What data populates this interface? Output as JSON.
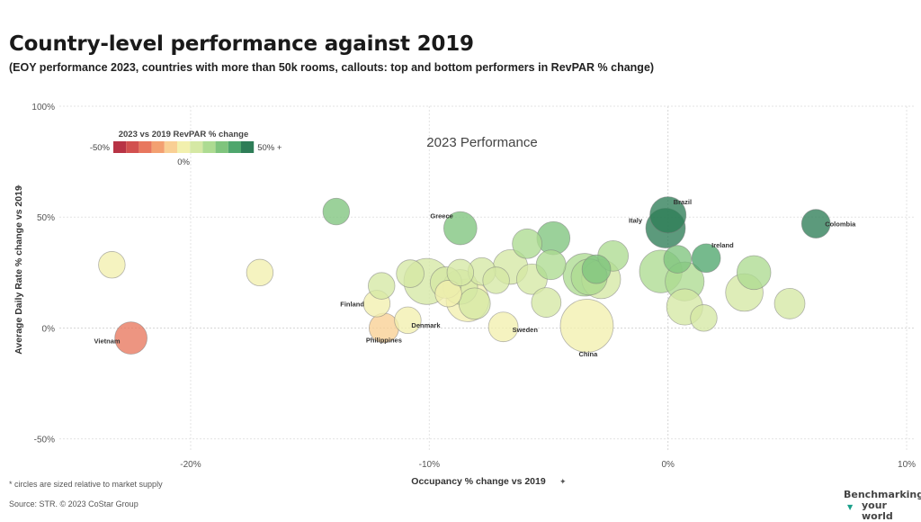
{
  "header": {
    "title": "Country-level performance against 2019",
    "subtitle": "(EOY performance 2023, countries with more than 50k rooms, callouts: top and bottom performers in RevPAR % change)"
  },
  "footer": {
    "footnote": "* circles are sized relative to market supply",
    "source": "Source: STR. © 2023 CoStar Group",
    "brand_line1": "Benchmarking",
    "brand_line2": "your world"
  },
  "colors": {
    "scale": [
      "#b83345",
      "#d2504f",
      "#e8775e",
      "#f3a071",
      "#f9cf94",
      "#f2f0ae",
      "#d5e8a4",
      "#addb91",
      "#7fc47d",
      "#4fa66d",
      "#2e7d57"
    ],
    "grid": "#e3e3e3",
    "zero_line": "#d6d6d6"
  },
  "chart_data": {
    "type": "scatter",
    "title": "2023 Performance",
    "xlabel": "Occupancy % change vs 2019",
    "ylabel": "Average Daily Rate % change vs 2019",
    "xlim": [
      -25.5,
      10.3
    ],
    "ylim": [
      -55,
      100
    ],
    "x_ticks": [
      -20,
      -10,
      0,
      10
    ],
    "x_tick_labels": [
      "-20%",
      "-10%",
      "0%",
      "10%"
    ],
    "y_ticks": [
      -50,
      0,
      50,
      100
    ],
    "y_tick_labels": [
      "-50%",
      "0%",
      "50%",
      "100%"
    ],
    "grid": true,
    "size_encodes": "market supply",
    "color_encodes": "RevPAR % change vs 2019",
    "legend": {
      "title": "2023 vs 2019 RevPAR % change",
      "min_label": "-50%",
      "mid_label": "0%",
      "max_label": "50% +",
      "placement": "top-left"
    },
    "points": [
      {
        "label": "Brazil",
        "x": 0,
        "y": 51,
        "size": 20,
        "revpar": 60
      },
      {
        "label": "Italy",
        "x": -0.1,
        "y": 45,
        "size": 25,
        "revpar": 50
      },
      {
        "label": "Colombia",
        "x": 6.2,
        "y": 47,
        "size": 11,
        "revpar": 55
      },
      {
        "label": "Ireland",
        "x": 1.6,
        "y": 31.5,
        "size": 11,
        "revpar": 38
      },
      {
        "label": "Greece",
        "x": -8.7,
        "y": 45,
        "size": 16,
        "revpar": 32
      },
      {
        "label": "Finland",
        "x": -12.2,
        "y": 11,
        "size": 9,
        "revpar": 1
      },
      {
        "label": "Philippines",
        "x": -11.9,
        "y": 0,
        "size": 12,
        "revpar": -10
      },
      {
        "label": "Denmark",
        "x": -10.9,
        "y": 3.5,
        "size": 9,
        "revpar": -4
      },
      {
        "label": "Sweden",
        "x": -6.9,
        "y": 0.5,
        "size": 12,
        "revpar": -3
      },
      {
        "label": "China",
        "x": -3.4,
        "y": 1,
        "size": 50,
        "revpar": -2
      },
      {
        "label": "Vietnam",
        "x": -22.5,
        "y": -4.5,
        "size": 15,
        "revpar": -27
      },
      {
        "label": "",
        "x": -23.3,
        "y": 28.5,
        "size": 9,
        "revpar": 2
      },
      {
        "label": "",
        "x": -17.1,
        "y": 25,
        "size": 9,
        "revpar": 4
      },
      {
        "label": "",
        "x": -13.9,
        "y": 52.5,
        "size": 9,
        "revpar": 32
      },
      {
        "label": "",
        "x": -12,
        "y": 19,
        "size": 9,
        "revpar": 5
      },
      {
        "label": "",
        "x": -10.8,
        "y": 24.5,
        "size": 10,
        "revpar": 10
      },
      {
        "label": "",
        "x": -10.1,
        "y": 21,
        "size": 36,
        "revpar": 8
      },
      {
        "label": "",
        "x": -9.3,
        "y": 20.5,
        "size": 14,
        "revpar": 6
      },
      {
        "label": "",
        "x": -9.2,
        "y": 15.5,
        "size": 9,
        "revpar": 4
      },
      {
        "label": "",
        "x": -8.7,
        "y": 25,
        "size": 9,
        "revpar": 9
      },
      {
        "label": "",
        "x": -8.4,
        "y": 12.5,
        "size": 30,
        "revpar": 4
      },
      {
        "label": "",
        "x": -8.7,
        "y": 18.5,
        "size": 18,
        "revpar": 10
      },
      {
        "label": "",
        "x": -8.1,
        "y": 11,
        "size": 14,
        "revpar": 6
      },
      {
        "label": "",
        "x": -7.8,
        "y": 25.5,
        "size": 10,
        "revpar": 11
      },
      {
        "label": "",
        "x": -7.2,
        "y": 21.5,
        "size": 9,
        "revpar": 9
      },
      {
        "label": "",
        "x": -6.6,
        "y": 27.5,
        "size": 18,
        "revpar": 9
      },
      {
        "label": "",
        "x": -5.9,
        "y": 38,
        "size": 12,
        "revpar": 23
      },
      {
        "label": "",
        "x": -5.7,
        "y": 22,
        "size": 13,
        "revpar": 11
      },
      {
        "label": "",
        "x": -5.1,
        "y": 11.5,
        "size": 12,
        "revpar": 5
      },
      {
        "label": "",
        "x": -4.8,
        "y": 40.5,
        "size": 16,
        "revpar": 34
      },
      {
        "label": "",
        "x": -4.9,
        "y": 28.5,
        "size": 12,
        "revpar": 18
      },
      {
        "label": "",
        "x": -3.5,
        "y": 24,
        "size": 30,
        "revpar": 21
      },
      {
        "label": "",
        "x": -3.3,
        "y": 23,
        "size": 20,
        "revpar": 16
      },
      {
        "label": "",
        "x": -3,
        "y": 26.5,
        "size": 11,
        "revpar": 28
      },
      {
        "label": "",
        "x": -2.8,
        "y": 22,
        "size": 24,
        "revpar": 13
      },
      {
        "label": "",
        "x": -2.3,
        "y": 32.5,
        "size": 13,
        "revpar": 19
      },
      {
        "label": "",
        "x": -0.3,
        "y": 25.5,
        "size": 30,
        "revpar": 16
      },
      {
        "label": "",
        "x": 0.4,
        "y": 31,
        "size": 10,
        "revpar": 34
      },
      {
        "label": "",
        "x": 0.7,
        "y": 21,
        "size": 24,
        "revpar": 24
      },
      {
        "label": "",
        "x": 0.7,
        "y": 9.5,
        "size": 20,
        "revpar": 12
      },
      {
        "label": "",
        "x": 1.5,
        "y": 4.5,
        "size": 9,
        "revpar": 5
      },
      {
        "label": "",
        "x": 3.2,
        "y": 16,
        "size": 22,
        "revpar": 14
      },
      {
        "label": "",
        "x": 3.6,
        "y": 25,
        "size": 17,
        "revpar": 22
      },
      {
        "label": "",
        "x": 5.1,
        "y": 11,
        "size": 13,
        "revpar": 12
      }
    ]
  }
}
